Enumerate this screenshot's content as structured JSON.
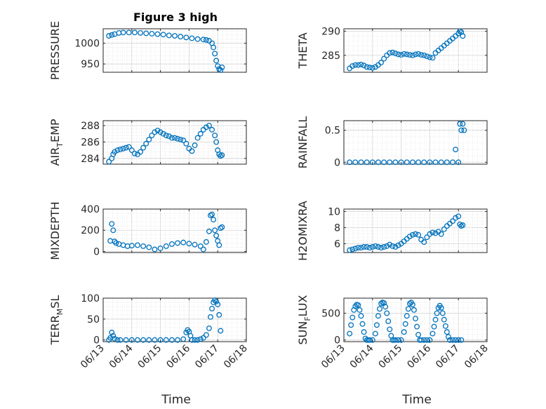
{
  "figure": {
    "title": "Figure 3 high",
    "marker_color": "#0072BD",
    "x_tick_labels": [
      "06/13",
      "06/14",
      "06/15",
      "06/16",
      "06/17",
      "06/18"
    ],
    "x_label": "Time"
  },
  "chart_data": [
    {
      "type": "scatter",
      "id": "pressure",
      "ylabel": "PRESSURE",
      "ylim": [
        930,
        1035
      ],
      "yticks": [
        950,
        1000
      ],
      "xticks": [
        "06/13",
        "06/14",
        "06/15",
        "06/16",
        "06/17",
        "06/18"
      ],
      "xlim": [
        0,
        5
      ],
      "grid": true,
      "minor_grid": true,
      "x": [
        0.2,
        0.3,
        0.4,
        0.55,
        0.7,
        0.9,
        1.1,
        1.3,
        1.5,
        1.7,
        1.9,
        2.1,
        2.3,
        2.5,
        2.7,
        2.9,
        3.1,
        3.3,
        3.5,
        3.6,
        3.7,
        3.8,
        3.85,
        3.9,
        3.95,
        4.0,
        4.05,
        4.1,
        4.15
      ],
      "y": [
        1018,
        1020,
        1022,
        1025,
        1026,
        1026,
        1026,
        1025,
        1024,
        1023,
        1022,
        1021,
        1019,
        1018,
        1016,
        1014,
        1012,
        1010,
        1009,
        1008,
        1006,
        1000,
        990,
        975,
        958,
        945,
        938,
        935,
        942
      ]
    },
    {
      "type": "scatter",
      "id": "theta",
      "ylabel": "THETA",
      "ylim": [
        281.5,
        290.5
      ],
      "yticks": [
        285,
        290
      ],
      "xticks": [
        "06/13",
        "06/14",
        "06/15",
        "06/16",
        "06/17",
        "06/18"
      ],
      "xlim": [
        0,
        5
      ],
      "grid": true,
      "minor_grid": true,
      "x": [
        0.2,
        0.3,
        0.4,
        0.5,
        0.6,
        0.7,
        0.8,
        0.9,
        1.0,
        1.1,
        1.2,
        1.3,
        1.4,
        1.5,
        1.6,
        1.7,
        1.8,
        1.9,
        2.0,
        2.1,
        2.2,
        2.3,
        2.4,
        2.5,
        2.6,
        2.7,
        2.8,
        2.9,
        3.0,
        3.1,
        3.2,
        3.3,
        3.4,
        3.5,
        3.6,
        3.7,
        3.8,
        3.9,
        4.0,
        4.05,
        4.1,
        4.15
      ],
      "y": [
        282.3,
        282.8,
        283.0,
        283.0,
        283.1,
        282.9,
        282.6,
        282.5,
        282.4,
        282.6,
        283.0,
        283.5,
        284.3,
        285.0,
        285.5,
        285.6,
        285.4,
        285.2,
        285.1,
        285.3,
        285.2,
        285.1,
        285.0,
        285.2,
        285.3,
        285.1,
        285.0,
        284.8,
        284.6,
        284.5,
        285.5,
        286.0,
        286.5,
        287.0,
        287.5,
        288.0,
        288.5,
        289.0,
        289.5,
        290.0,
        289.8,
        289.0
      ]
    },
    {
      "type": "scatter",
      "id": "air_temp",
      "ylabel": "AIR_TEMP",
      "ylim": [
        283.3,
        288.6
      ],
      "yticks": [
        284,
        286,
        288
      ],
      "xticks": [
        "06/13",
        "06/14",
        "06/15",
        "06/16",
        "06/17",
        "06/18"
      ],
      "xlim": [
        0,
        5
      ],
      "grid": true,
      "minor_grid": true,
      "x": [
        0.2,
        0.3,
        0.35,
        0.4,
        0.5,
        0.6,
        0.7,
        0.8,
        0.9,
        1.0,
        1.1,
        1.2,
        1.3,
        1.4,
        1.5,
        1.6,
        1.7,
        1.8,
        1.9,
        2.0,
        2.1,
        2.2,
        2.3,
        2.4,
        2.5,
        2.6,
        2.7,
        2.8,
        2.9,
        3.0,
        3.1,
        3.2,
        3.3,
        3.4,
        3.5,
        3.6,
        3.7,
        3.8,
        3.9,
        3.95,
        4.0,
        4.05,
        4.1,
        4.15
      ],
      "y": [
        283.6,
        284.0,
        284.5,
        284.8,
        285.0,
        285.1,
        285.2,
        285.3,
        285.4,
        285.0,
        284.6,
        284.5,
        284.8,
        285.3,
        285.8,
        286.3,
        286.8,
        287.2,
        287.4,
        287.2,
        287.0,
        286.8,
        286.7,
        286.5,
        286.5,
        286.4,
        286.3,
        286.2,
        285.8,
        285.2,
        284.9,
        285.6,
        286.5,
        287.0,
        287.5,
        287.8,
        288.0,
        287.5,
        286.8,
        286.0,
        285.0,
        284.5,
        284.3,
        284.4
      ]
    },
    {
      "type": "scatter",
      "id": "rainfall",
      "ylabel": "RAINFALL",
      "ylim": [
        -0.03,
        0.65
      ],
      "yticks": [
        0,
        0.5
      ],
      "xticks": [
        "06/13",
        "06/14",
        "06/15",
        "06/16",
        "06/17",
        "06/18"
      ],
      "xlim": [
        0,
        5
      ],
      "grid": true,
      "minor_grid": true,
      "x": [
        0.2,
        0.4,
        0.6,
        0.8,
        1.0,
        1.2,
        1.4,
        1.6,
        1.8,
        2.0,
        2.2,
        2.4,
        2.6,
        2.8,
        3.0,
        3.2,
        3.4,
        3.6,
        3.8,
        3.9,
        4.0,
        4.05,
        4.1,
        4.15,
        4.2
      ],
      "y": [
        0,
        0,
        0,
        0,
        0,
        0,
        0,
        0,
        0,
        0,
        0,
        0,
        0,
        0,
        0,
        0,
        0,
        0,
        0,
        0.2,
        0,
        0.6,
        0.5,
        0.6,
        0.5
      ]
    },
    {
      "type": "scatter",
      "id": "mixdepth",
      "ylabel": "MIXDEPTH",
      "ylim": [
        -10,
        400
      ],
      "yticks": [
        0,
        200,
        400
      ],
      "xticks": [
        "06/13",
        "06/14",
        "06/15",
        "06/16",
        "06/17",
        "06/18"
      ],
      "xlim": [
        0,
        5
      ],
      "grid": true,
      "minor_grid": true,
      "x": [
        0.25,
        0.3,
        0.35,
        0.4,
        0.45,
        0.55,
        0.7,
        0.85,
        1.0,
        1.2,
        1.4,
        1.6,
        1.8,
        2.0,
        2.2,
        2.4,
        2.6,
        2.8,
        3.0,
        3.2,
        3.4,
        3.5,
        3.6,
        3.7,
        3.75,
        3.8,
        3.85,
        3.9,
        3.95,
        4.0,
        4.05,
        4.1,
        4.15
      ],
      "y": [
        100,
        260,
        200,
        95,
        80,
        70,
        60,
        50,
        55,
        60,
        50,
        40,
        20,
        30,
        50,
        70,
        80,
        85,
        75,
        65,
        50,
        20,
        90,
        190,
        340,
        350,
        300,
        200,
        150,
        100,
        60,
        220,
        230
      ]
    },
    {
      "type": "scatter",
      "id": "h2omixra",
      "ylabel": "H2OMIXRA",
      "ylim": [
        4.9,
        10.3
      ],
      "yticks": [
        6,
        8,
        10
      ],
      "xticks": [
        "06/13",
        "06/14",
        "06/15",
        "06/16",
        "06/17",
        "06/18"
      ],
      "xlim": [
        0,
        5
      ],
      "grid": true,
      "minor_grid": true,
      "x": [
        0.2,
        0.3,
        0.4,
        0.5,
        0.6,
        0.7,
        0.8,
        0.9,
        1.0,
        1.1,
        1.2,
        1.3,
        1.4,
        1.5,
        1.6,
        1.7,
        1.8,
        1.9,
        2.0,
        2.1,
        2.2,
        2.3,
        2.4,
        2.5,
        2.6,
        2.7,
        2.8,
        2.9,
        3.0,
        3.1,
        3.2,
        3.3,
        3.4,
        3.5,
        3.6,
        3.7,
        3.8,
        3.9,
        4.0,
        4.05,
        4.1,
        4.15
      ],
      "y": [
        5.2,
        5.3,
        5.4,
        5.5,
        5.5,
        5.6,
        5.6,
        5.5,
        5.6,
        5.7,
        5.6,
        5.5,
        5.6,
        5.7,
        5.9,
        5.7,
        5.6,
        5.8,
        6.0,
        6.3,
        6.6,
        6.9,
        7.1,
        7.2,
        7.1,
        6.5,
        6.2,
        6.8,
        7.2,
        7.4,
        7.3,
        7.5,
        7.2,
        7.8,
        8.2,
        8.5,
        8.8,
        9.2,
        9.4,
        8.4,
        8.2,
        8.3
      ]
    },
    {
      "type": "scatter",
      "id": "terr_msl",
      "ylabel": "TERR_MSL",
      "ylim": [
        -4,
        100
      ],
      "yticks": [
        0,
        50,
        100
      ],
      "xticks": [
        "06/13",
        "06/14",
        "06/15",
        "06/16",
        "06/17",
        "06/18"
      ],
      "xlim": [
        0,
        5
      ],
      "grid": true,
      "minor_grid": true,
      "x": [
        0.2,
        0.25,
        0.3,
        0.35,
        0.4,
        0.5,
        0.6,
        0.8,
        1.0,
        1.2,
        1.4,
        1.6,
        1.8,
        2.0,
        2.2,
        2.4,
        2.6,
        2.8,
        2.9,
        2.95,
        3.0,
        3.05,
        3.1,
        3.2,
        3.3,
        3.4,
        3.5,
        3.6,
        3.7,
        3.75,
        3.8,
        3.85,
        3.9,
        3.95,
        4.0,
        4.05,
        4.1
      ],
      "y": [
        0,
        5,
        18,
        10,
        3,
        0,
        0,
        0,
        0,
        0,
        0,
        0,
        0,
        0,
        0,
        0,
        0,
        2,
        18,
        24,
        20,
        10,
        0,
        0,
        0,
        2,
        5,
        12,
        28,
        55,
        75,
        90,
        95,
        92,
        85,
        60,
        22
      ]
    },
    {
      "type": "scatter",
      "id": "sun_flux",
      "ylabel": "SUN_FLUX",
      "ylim": [
        -30,
        780
      ],
      "yticks": [
        0,
        500
      ],
      "xticks": [
        "06/13",
        "06/14",
        "06/15",
        "06/16",
        "06/17",
        "06/18"
      ],
      "xlim": [
        0,
        5
      ],
      "grid": true,
      "minor_grid": true,
      "x": [
        0.2,
        0.25,
        0.3,
        0.35,
        0.4,
        0.45,
        0.5,
        0.55,
        0.6,
        0.65,
        0.7,
        0.75,
        0.8,
        0.85,
        0.9,
        1.0,
        1.1,
        1.15,
        1.2,
        1.25,
        1.3,
        1.35,
        1.4,
        1.45,
        1.5,
        1.55,
        1.6,
        1.65,
        1.7,
        1.75,
        1.8,
        1.9,
        2.0,
        2.1,
        2.15,
        2.2,
        2.25,
        2.3,
        2.35,
        2.4,
        2.45,
        2.5,
        2.55,
        2.6,
        2.65,
        2.7,
        2.8,
        2.9,
        3.0,
        3.1,
        3.15,
        3.2,
        3.25,
        3.3,
        3.35,
        3.4,
        3.45,
        3.5,
        3.55,
        3.6,
        3.65,
        3.7,
        3.8,
        3.9,
        4.0,
        4.1
      ],
      "y": [
        120,
        280,
        420,
        560,
        630,
        660,
        650,
        560,
        450,
        300,
        150,
        30,
        0,
        0,
        0,
        0,
        120,
        280,
        450,
        580,
        680,
        700,
        690,
        620,
        500,
        350,
        200,
        80,
        0,
        0,
        0,
        0,
        0,
        150,
        300,
        450,
        580,
        680,
        700,
        660,
        560,
        400,
        250,
        100,
        0,
        0,
        0,
        0,
        0,
        120,
        250,
        380,
        500,
        600,
        640,
        600,
        500,
        380,
        260,
        150,
        60,
        0,
        0,
        0,
        0,
        0
      ]
    }
  ]
}
